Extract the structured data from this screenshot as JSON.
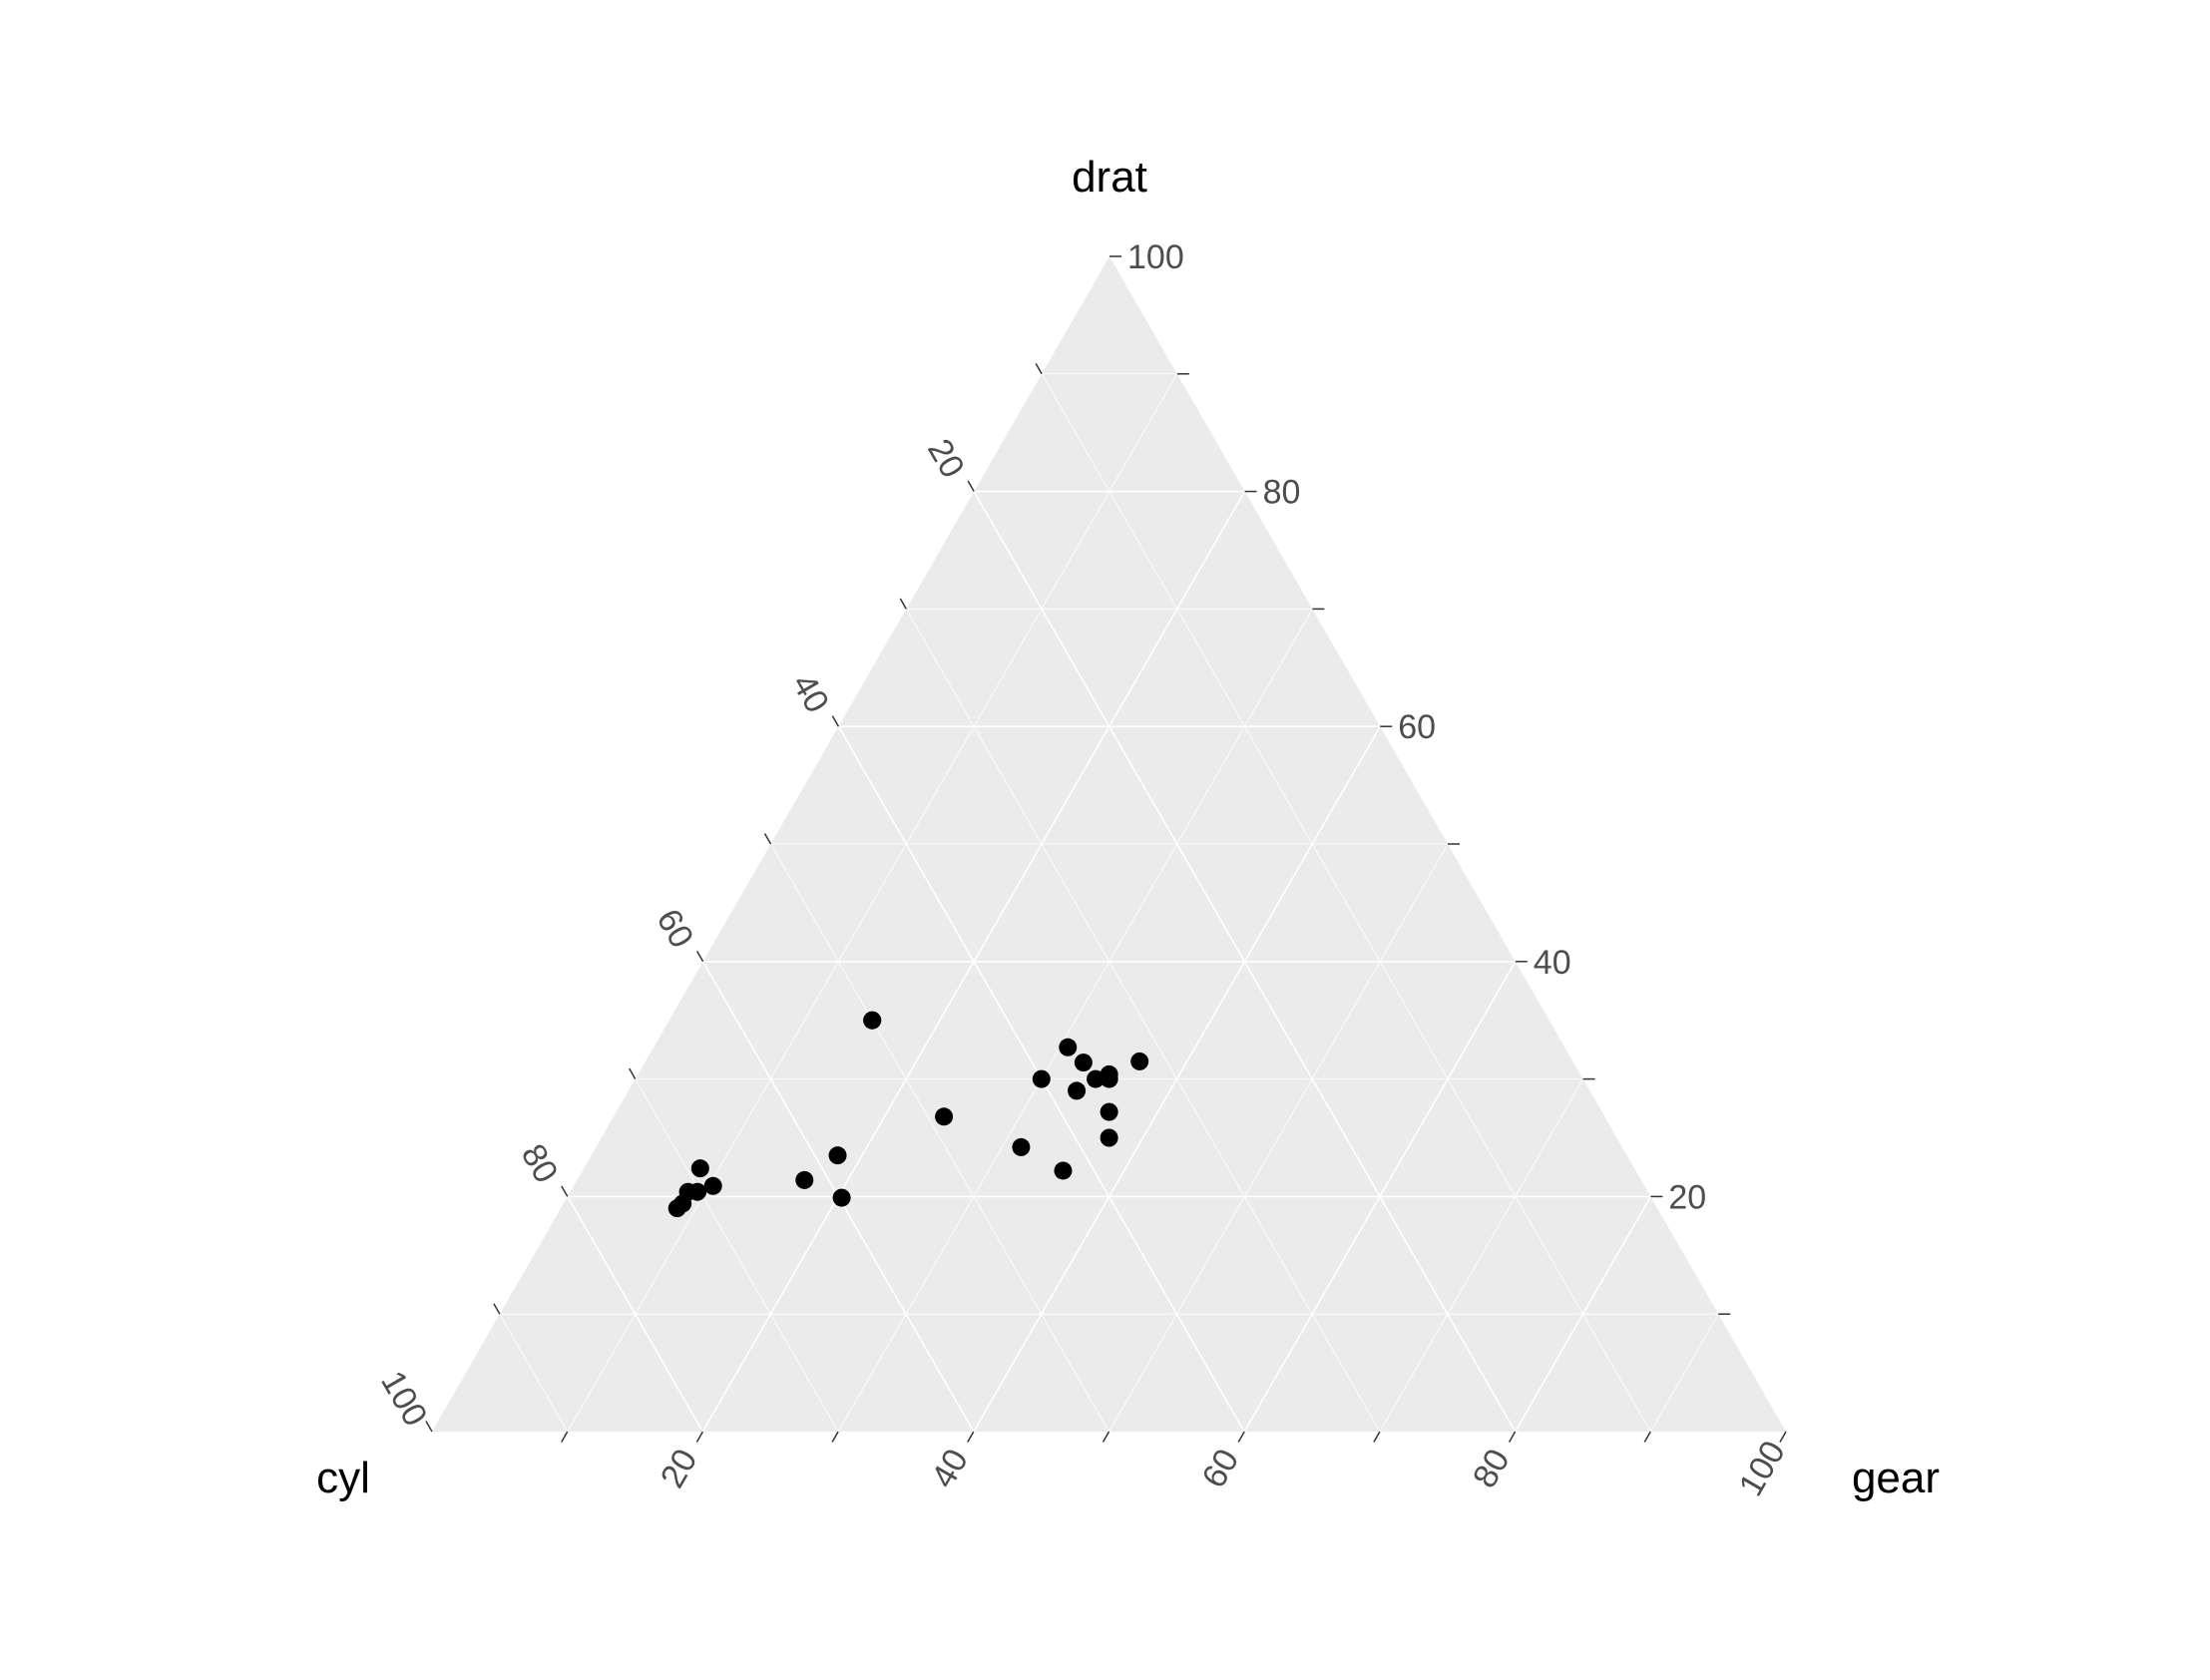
{
  "chart_data": {
    "type": "scatter",
    "subtype": "ternary",
    "axes": {
      "top": "drat",
      "left": "cyl",
      "right": "gear"
    },
    "ticks": [
      20,
      40,
      60,
      80,
      100
    ],
    "tick_labels": [
      "20",
      "40",
      "60",
      "80",
      "100"
    ],
    "range": [
      0,
      100
    ],
    "grid": true,
    "colors": {
      "panel": "#ebebeb",
      "grid": "#ffffff",
      "point": "#000000",
      "tick_text": "#4d4d4d",
      "title_text": "#000000"
    },
    "points": [
      {
        "cyl": 50.0,
        "gear": 15.0,
        "drat": 35.0
      },
      {
        "cyl": 50.0,
        "gear": 15.0,
        "drat": 35.0
      },
      {
        "cyl": 36.4,
        "gear": 36.4,
        "drat": 27.2
      },
      {
        "cyl": 48.8,
        "gear": 24.4,
        "drat": 26.8
      },
      {
        "cyl": 69.0,
        "gear": 8.6,
        "drat": 22.4
      },
      {
        "cyl": 42.3,
        "gear": 35.5,
        "drat": 22.2
      },
      {
        "cyl": 68.8,
        "gear": 10.3,
        "drat": 20.9
      },
      {
        "cyl": 37.5,
        "gear": 37.5,
        "drat": 25.0
      },
      {
        "cyl": 40.0,
        "gear": 30.0,
        "drat": 30.0
      },
      {
        "cyl": 37.9,
        "gear": 33.1,
        "drat": 29.0
      },
      {
        "cyl": 36.7,
        "gear": 30.6,
        "drat": 32.7
      },
      {
        "cyl": 58.3,
        "gear": 18.2,
        "drat": 23.5
      },
      {
        "cyl": 59.8,
        "gear": 20.3,
        "drat": 19.9
      },
      {
        "cyl": 61.8,
        "gear": 16.8,
        "drat": 21.4
      },
      {
        "cyl": 71.8,
        "gear": 8.8,
        "drat": 19.4
      },
      {
        "cyl": 72.4,
        "gear": 8.6,
        "drat": 19.0
      },
      {
        "cyl": 70.9,
        "gear": 8.7,
        "drat": 20.4
      },
      {
        "cyl": 70.2,
        "gear": 9.4,
        "drat": 20.4
      },
      {
        "cyl": 32.0,
        "gear": 36.5,
        "drat": 31.5
      },
      {
        "cyl": 44.4,
        "gear": 31.4,
        "drat": 24.2
      },
      {
        "cyl": 36.2,
        "gear": 32.4,
        "drat": 31.4
      },
      {
        "cyl": 34.8,
        "gear": 34.8,
        "drat": 30.4
      },
      {
        "cyl": 35.0,
        "gear": 35.0,
        "drat": 30.0
      },
      {
        "cyl": 36.0,
        "gear": 34.0,
        "drat": 30.0
      }
    ]
  }
}
